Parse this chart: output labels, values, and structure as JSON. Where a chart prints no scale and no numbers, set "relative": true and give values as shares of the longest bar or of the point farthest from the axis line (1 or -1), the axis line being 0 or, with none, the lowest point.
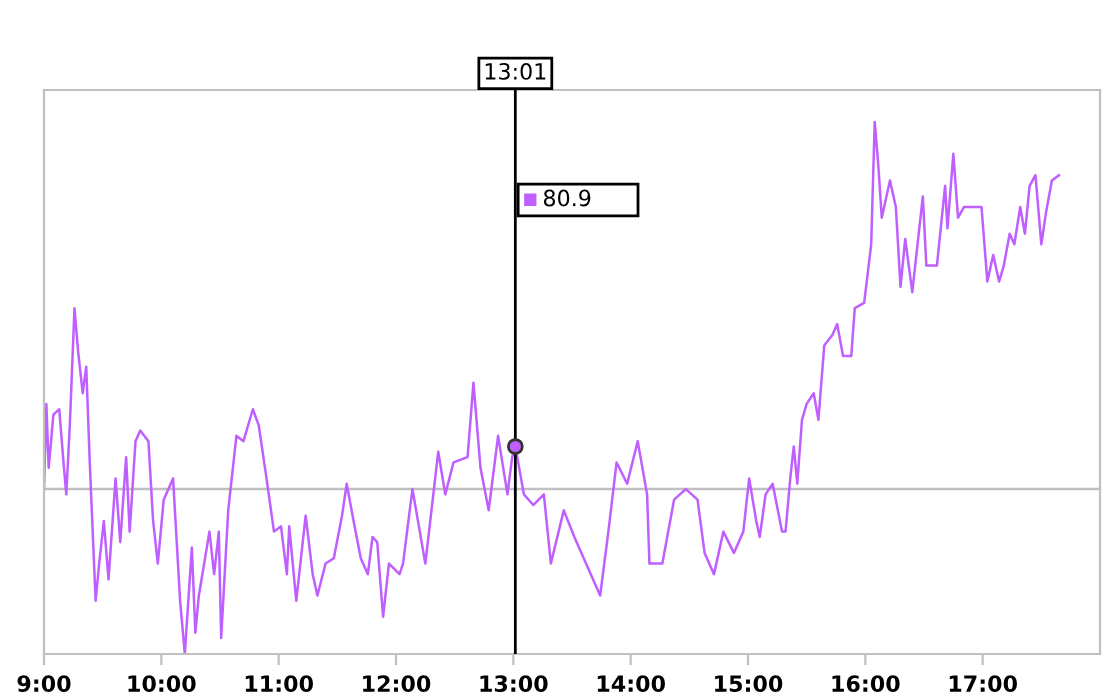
{
  "chart_data": {
    "type": "line",
    "relative": true,
    "x": [
      9.0,
      9.02,
      9.04,
      9.08,
      9.13,
      9.17,
      9.19,
      9.22,
      9.26,
      9.29,
      9.33,
      9.36,
      9.39,
      9.44,
      9.47,
      9.51,
      9.55,
      9.61,
      9.65,
      9.7,
      9.73,
      9.78,
      9.82,
      9.89,
      9.93,
      9.97,
      10.02,
      10.1,
      10.16,
      10.2,
      10.26,
      10.29,
      10.32,
      10.41,
      10.45,
      10.49,
      10.51,
      10.57,
      10.64,
      10.7,
      10.78,
      10.83,
      10.89,
      10.96,
      11.02,
      11.07,
      11.09,
      11.15,
      11.23,
      11.29,
      11.33,
      11.4,
      11.47,
      11.54,
      11.58,
      11.63,
      11.7,
      11.76,
      11.8,
      11.84,
      11.89,
      11.94,
      12.03,
      12.06,
      12.14,
      12.25,
      12.36,
      12.42,
      12.49,
      12.61,
      12.66,
      12.72,
      12.79,
      12.87,
      12.95,
      12.99,
      13.017,
      13.09,
      13.17,
      13.26,
      13.32,
      13.43,
      13.52,
      13.6,
      13.66,
      13.74,
      13.81,
      13.88,
      13.97,
      14.06,
      14.14,
      14.16,
      14.27,
      14.37,
      14.47,
      14.57,
      14.63,
      14.71,
      14.79,
      14.88,
      14.96,
      15.01,
      15.07,
      15.1,
      15.15,
      15.21,
      15.29,
      15.32,
      15.36,
      15.39,
      15.42,
      15.46,
      15.5,
      15.56,
      15.6,
      15.65,
      15.72,
      15.76,
      15.81,
      15.88,
      15.91,
      15.99,
      16.05,
      16.08,
      16.11,
      16.14,
      16.21,
      16.26,
      16.3,
      16.34,
      16.4,
      16.49,
      16.52,
      16.61,
      16.68,
      16.7,
      16.75,
      16.79,
      16.84,
      16.96,
      16.99,
      17.04,
      17.09,
      17.14,
      17.18,
      17.23,
      17.27,
      17.32,
      17.36,
      17.4,
      17.45,
      17.5,
      17.54,
      17.59,
      17.65
    ],
    "series": [
      {
        "color": "#bf5fff",
        "values": [
          0.31,
          0.47,
          0.35,
          0.45,
          0.46,
          0.35,
          0.3,
          0.43,
          0.65,
          0.57,
          0.49,
          0.54,
          0.36,
          0.1,
          0.17,
          0.25,
          0.14,
          0.33,
          0.21,
          0.37,
          0.23,
          0.4,
          0.42,
          0.4,
          0.25,
          0.17,
          0.29,
          0.33,
          0.1,
          0.0,
          0.2,
          0.04,
          0.11,
          0.23,
          0.15,
          0.23,
          0.03,
          0.27,
          0.41,
          0.4,
          0.46,
          0.43,
          0.34,
          0.23,
          0.24,
          0.15,
          0.24,
          0.1,
          0.26,
          0.15,
          0.11,
          0.17,
          0.18,
          0.26,
          0.32,
          0.26,
          0.18,
          0.15,
          0.22,
          0.21,
          0.07,
          0.17,
          0.15,
          0.17,
          0.31,
          0.17,
          0.38,
          0.3,
          0.36,
          0.37,
          0.51,
          0.35,
          0.27,
          0.41,
          0.3,
          0.37,
          0.39,
          0.3,
          0.28,
          0.3,
          0.17,
          0.27,
          0.22,
          0.18,
          0.15,
          0.11,
          0.23,
          0.36,
          0.32,
          0.4,
          0.3,
          0.17,
          0.17,
          0.29,
          0.31,
          0.29,
          0.19,
          0.15,
          0.23,
          0.19,
          0.23,
          0.33,
          0.25,
          0.22,
          0.3,
          0.32,
          0.23,
          0.23,
          0.33,
          0.39,
          0.32,
          0.44,
          0.47,
          0.49,
          0.44,
          0.58,
          0.6,
          0.62,
          0.56,
          0.56,
          0.65,
          0.66,
          0.77,
          1.0,
          0.92,
          0.82,
          0.89,
          0.84,
          0.69,
          0.78,
          0.68,
          0.86,
          0.73,
          0.73,
          0.88,
          0.8,
          0.94,
          0.82,
          0.84,
          0.84,
          0.84,
          0.7,
          0.75,
          0.7,
          0.73,
          0.79,
          0.77,
          0.84,
          0.79,
          0.88,
          0.9,
          0.77,
          0.83,
          0.89,
          0.9
        ]
      }
    ],
    "xlim": [
      9,
      18
    ],
    "xticks": [
      {
        "value": 9,
        "label": "9:00"
      },
      {
        "value": 10,
        "label": "10:00"
      },
      {
        "value": 11,
        "label": "11:00"
      },
      {
        "value": 12,
        "label": "12:00"
      },
      {
        "value": 13,
        "label": "13:00"
      },
      {
        "value": 14,
        "label": "14:00"
      },
      {
        "value": 15,
        "label": "15:00"
      },
      {
        "value": 16,
        "label": "16:00"
      },
      {
        "value": 17,
        "label": "17:00"
      }
    ],
    "ref_lines": [
      {
        "axis": "y",
        "value": 0.31,
        "color": "#c0c0c0"
      },
      {
        "axis": "x",
        "value": 13.017,
        "label": "13:01",
        "color": "#000000"
      }
    ],
    "annotations": [
      "80.9"
    ],
    "grid": false,
    "marker": "none",
    "line_style": "solid"
  }
}
